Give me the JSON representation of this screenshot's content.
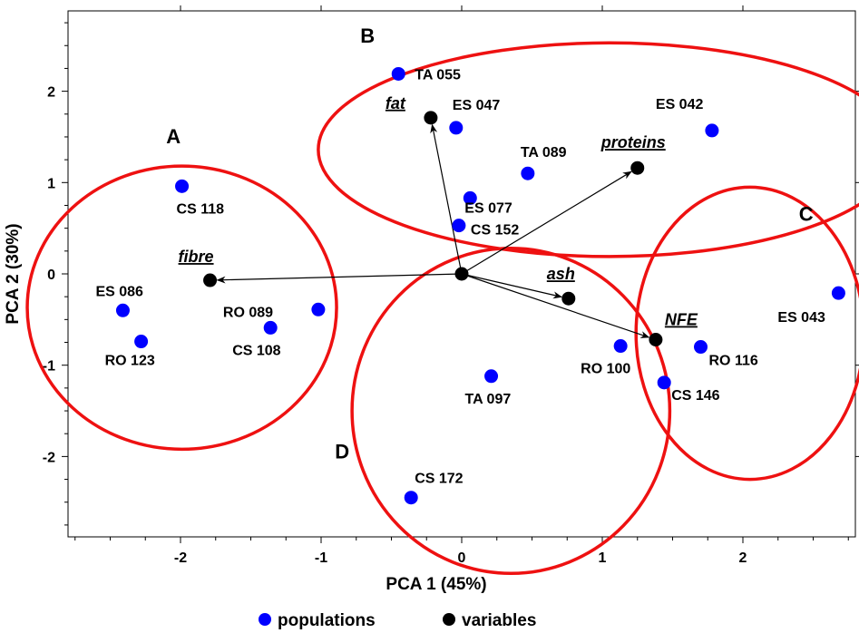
{
  "chart_data": {
    "type": "scatter",
    "xlabel": "PCA 1 (45%)",
    "ylabel": "PCA 2 (30%)",
    "xlim": [
      -2.8,
      2.8
    ],
    "ylim": [
      -2.88,
      2.88
    ],
    "x_ticks": [
      -2,
      -1,
      0,
      1,
      2
    ],
    "x_tick_labels": [
      "-2",
      "-1",
      "0",
      "1",
      "2"
    ],
    "y_ticks": [
      -2,
      -1,
      0,
      1,
      2
    ],
    "y_tick_labels": [
      "-2",
      "-1",
      "0",
      "1",
      "2"
    ],
    "grid": false,
    "legend_position": "bottom-center",
    "legend": [
      {
        "label": "populations",
        "color": "#0000ff"
      },
      {
        "label": "variables",
        "color": "#000000"
      }
    ],
    "series": [
      {
        "name": "populations",
        "color": "#0000ff",
        "points": [
          {
            "label": "TA 055",
            "x": -0.45,
            "y": 2.19
          },
          {
            "label": "ES 047",
            "x": -0.04,
            "y": 1.6
          },
          {
            "label": "ES 042",
            "x": 1.78,
            "y": 1.57
          },
          {
            "label": "TA 089",
            "x": 0.47,
            "y": 1.1
          },
          {
            "label": "ES 077",
            "x": 0.06,
            "y": 0.83
          },
          {
            "label": "CS 152",
            "x": -0.02,
            "y": 0.53
          },
          {
            "label": "CS 118",
            "x": -1.99,
            "y": 0.96
          },
          {
            "label": "ES 086",
            "x": -2.41,
            "y": -0.4
          },
          {
            "label": "RO 123",
            "x": -2.28,
            "y": -0.74
          },
          {
            "label": "RO 089",
            "x": -1.02,
            "y": -0.39
          },
          {
            "label": "CS 108",
            "x": -1.36,
            "y": -0.59
          },
          {
            "label": "TA 097",
            "x": 0.21,
            "y": -1.12
          },
          {
            "label": "CS 172",
            "x": -0.36,
            "y": -2.45
          },
          {
            "label": "RO 100",
            "x": 1.13,
            "y": -0.79
          },
          {
            "label": "CS 146",
            "x": 1.44,
            "y": -1.19
          },
          {
            "label": "RO 116",
            "x": 1.7,
            "y": -0.8
          },
          {
            "label": "ES 043",
            "x": 2.68,
            "y": -0.21
          }
        ]
      },
      {
        "name": "variables",
        "color": "#000000",
        "points": [
          {
            "label": "fat",
            "x": -0.22,
            "y": 1.71
          },
          {
            "label": "proteins",
            "x": 1.25,
            "y": 1.16
          },
          {
            "label": "fibre",
            "x": -1.79,
            "y": -0.07
          },
          {
            "label": "ash",
            "x": 0.76,
            "y": -0.27
          },
          {
            "label": "NFE",
            "x": 1.38,
            "y": -0.72
          }
        ]
      }
    ],
    "origin": {
      "x": 0,
      "y": 0
    },
    "clusters": [
      {
        "label": "A",
        "members": [
          "CS 118",
          "ES 086",
          "RO 123",
          "RO 089",
          "CS 108",
          "fibre"
        ]
      },
      {
        "label": "B",
        "members": [
          "TA 055",
          "ES 047",
          "ES 042",
          "TA 089",
          "ES 077",
          "CS 152",
          "fat",
          "proteins"
        ]
      },
      {
        "label": "C",
        "members": [
          "ES 043",
          "RO 116",
          "CS 146"
        ]
      },
      {
        "label": "D",
        "members": [
          "TA 097",
          "CS 172",
          "RO 100",
          "NFE",
          "ash"
        ]
      }
    ],
    "colors": {
      "cluster_outline": "#ee1111",
      "populations": "#0000ff",
      "variables": "#000000"
    }
  }
}
